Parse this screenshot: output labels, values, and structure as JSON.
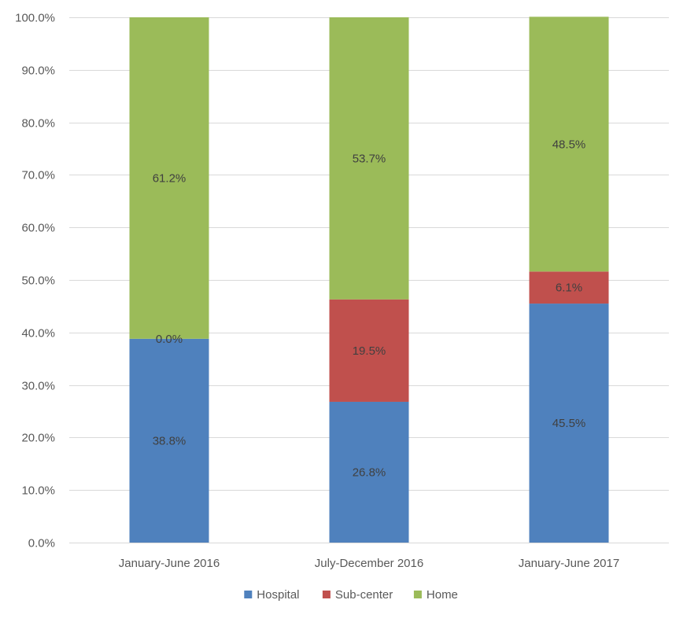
{
  "chart_data": {
    "type": "bar",
    "stacked": true,
    "categories": [
      "January-June 2016",
      "July-December 2016",
      "January-June 2017"
    ],
    "series": [
      {
        "name": "Hospital",
        "values": [
          38.8,
          26.8,
          45.5
        ],
        "labels": [
          "38.8%",
          "26.8%",
          "45.5%"
        ],
        "color": "#4f81bd"
      },
      {
        "name": "Sub-center",
        "values": [
          0.0,
          19.5,
          6.1
        ],
        "labels": [
          "0.0%",
          "19.5%",
          "6.1%"
        ],
        "color": "#c0504d"
      },
      {
        "name": "Home",
        "values": [
          61.2,
          53.7,
          48.5
        ],
        "labels": [
          "61.2%",
          "53.7%",
          "48.5%"
        ],
        "color": "#9bbb59"
      }
    ],
    "ylim": [
      0,
      100
    ],
    "y_ticks": [
      0,
      10,
      20,
      30,
      40,
      50,
      60,
      70,
      80,
      90,
      100
    ],
    "y_tick_labels": [
      "0.0%",
      "10.0%",
      "20.0%",
      "30.0%",
      "40.0%",
      "50.0%",
      "60.0%",
      "70.0%",
      "80.0%",
      "90.0%",
      "100.0%"
    ],
    "grid": true,
    "legend_position": "bottom",
    "label_color": "#404040",
    "axis_text_color": "#595959",
    "grid_color": "#d9d9d9"
  }
}
